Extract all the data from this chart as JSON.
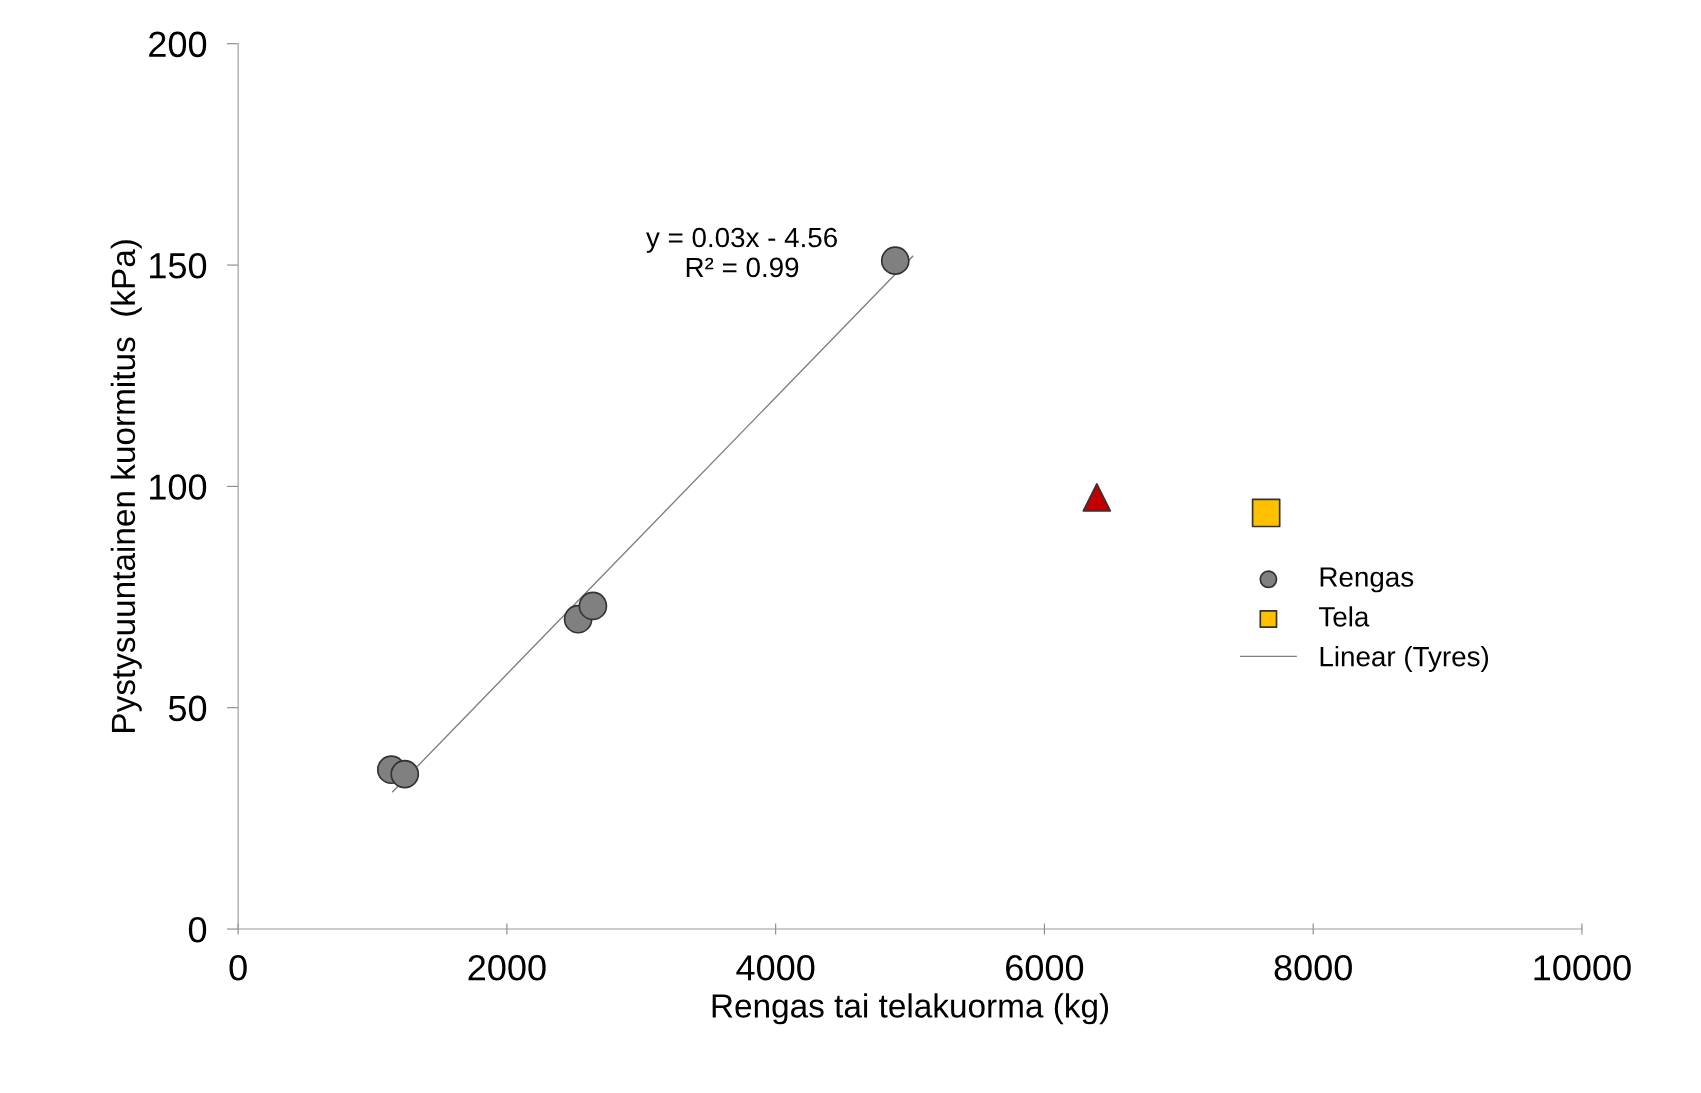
{
  "chart_data": {
    "type": "scatter",
    "xlabel": "Rengas tai telakuorma (kg)",
    "ylabel": "Pystysuuntainen kuormitus  (kPa)",
    "xlim": [
      0,
      10000
    ],
    "xticks": [
      0,
      2000,
      4000,
      6000,
      8000,
      10000
    ],
    "ylim": [
      0,
      200
    ],
    "yticks": [
      0,
      50,
      100,
      150,
      200
    ],
    "grid": false,
    "legend": "right",
    "annotations": [
      "y = 0.03x - 4.56\nR² = 0.99"
    ],
    "series": [
      {
        "name": "Rengas",
        "marker": "circle",
        "color": "#808080",
        "x": [
          1140,
          1240,
          2530,
          2640,
          4890
        ],
        "values": [
          36,
          35,
          70,
          73,
          151
        ]
      },
      {
        "marker": "triangle",
        "color": "#c00000",
        "x": [
          6390
        ],
        "values": [
          97.5
        ]
      },
      {
        "name": "Tela",
        "marker": "square",
        "color": "#ffc000",
        "x": [
          7650
        ],
        "values": [
          94
        ]
      },
      {
        "name": "Linear (Tyres)",
        "type": "line",
        "line_style": "solid",
        "color": "#808080",
        "x": [
          1150,
          5020
        ],
        "values": [
          31,
          152
        ]
      }
    ]
  }
}
